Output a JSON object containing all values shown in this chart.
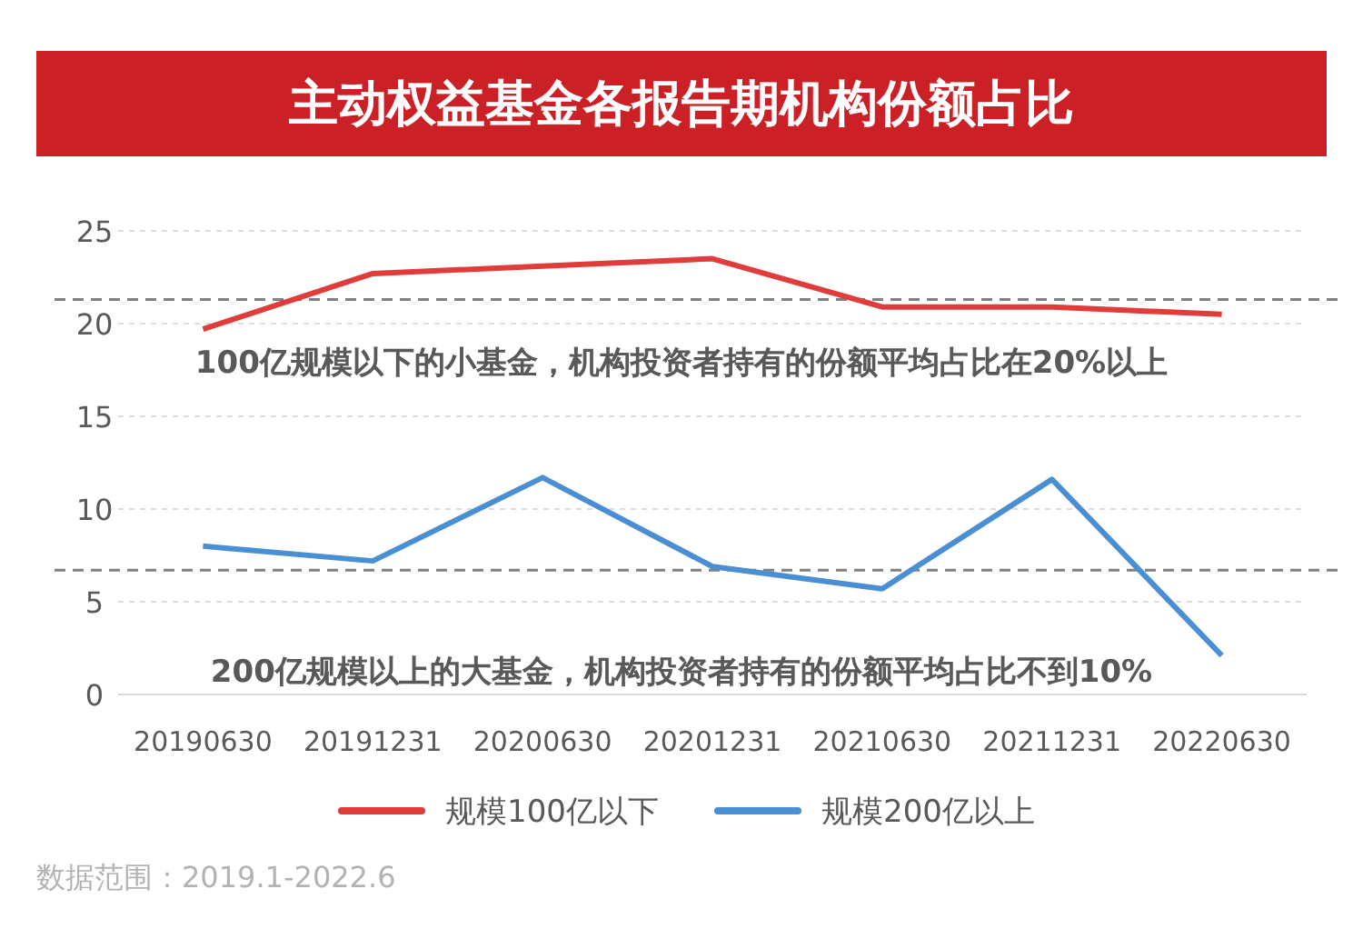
{
  "chart_data": {
    "type": "line",
    "title": "主动权益基金各报告期机构份额占比",
    "categories": [
      "20190630",
      "20191231",
      "20200630",
      "20201231",
      "20210630",
      "20211231",
      "20220630"
    ],
    "series": [
      {
        "name": "规模100亿以下",
        "color": "#e03c3c",
        "values": [
          19.7,
          22.7,
          23.1,
          23.5,
          20.9,
          20.9,
          20.5
        ]
      },
      {
        "name": "规模200亿以上",
        "color": "#4a8fd4",
        "values": [
          8.0,
          7.2,
          11.7,
          6.9,
          5.7,
          11.6,
          2.1
        ]
      }
    ],
    "ylim": [
      0,
      25
    ],
    "yticks": [
      0,
      5,
      10,
      15,
      20,
      25
    ],
    "grid": "y",
    "legend": "bottom",
    "marker": "none",
    "line_style": "solid",
    "ref_lines": [
      {
        "axis": "y",
        "value": 21.3,
        "color": "#808080",
        "line_style": "dashed"
      },
      {
        "axis": "y",
        "value": 6.7,
        "color": "#808080",
        "line_style": "dashed"
      }
    ],
    "annotations": [
      "100亿规模以下的小基金，机构投资者持有的份额平均占比在20%以上",
      "200亿规模以上的大基金，机构投资者持有的份额平均占比不到10%",
      "数据范围：2019.1-2022.6"
    ]
  }
}
